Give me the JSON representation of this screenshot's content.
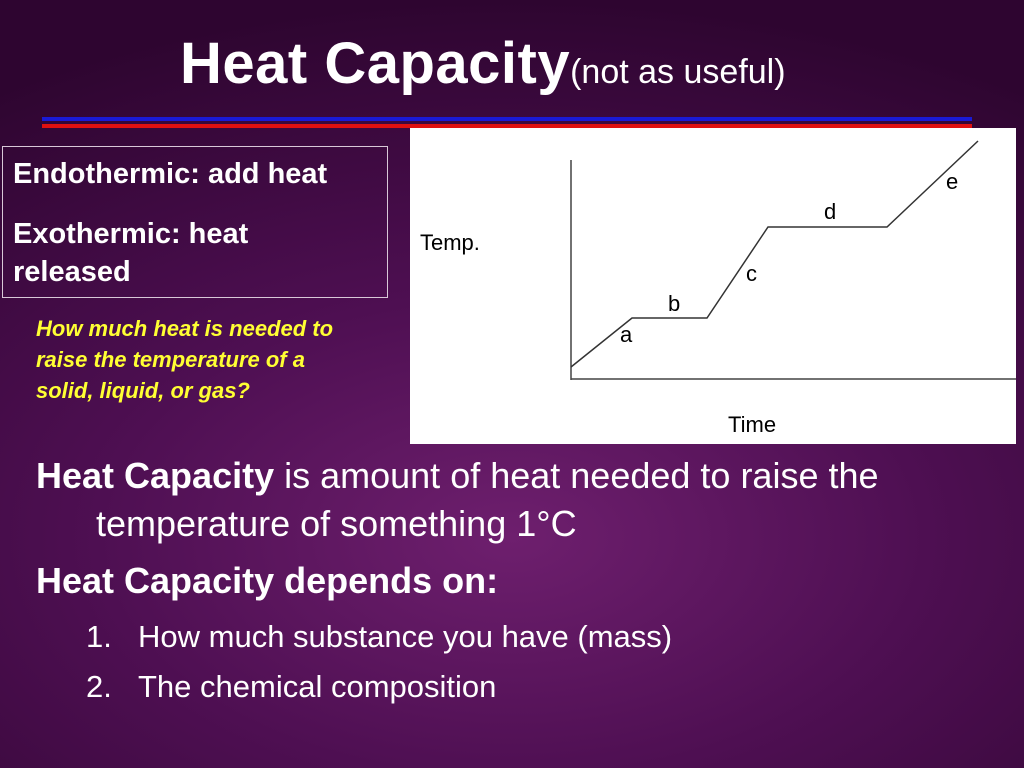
{
  "header": {
    "title": "Heat Capacity",
    "subtitle": "(not as useful)"
  },
  "definitions": {
    "endothermic": "Endothermic: add heat",
    "exothermic_line1": "Exothermic: heat",
    "exothermic_line2": "released"
  },
  "question": {
    "line1": "How much heat is needed to",
    "line2": "raise the temperature of a",
    "line3": "solid, liquid, or gas?"
  },
  "graph": {
    "y_axis_label": "Temp.",
    "x_axis_label": "Time",
    "segment_labels": [
      "a",
      "b",
      "c",
      "d",
      "e"
    ]
  },
  "body": {
    "definition_term": "Heat Capacity",
    "definition_rest": " is amount of heat needed to raise the",
    "definition_line2": "temperature of something  1°C",
    "depends_heading": "Heat Capacity depends on:",
    "items": [
      {
        "num": "1.",
        "text": "How much substance you have (mass)"
      },
      {
        "num": "2.",
        "text": "The chemical composition"
      }
    ]
  }
}
